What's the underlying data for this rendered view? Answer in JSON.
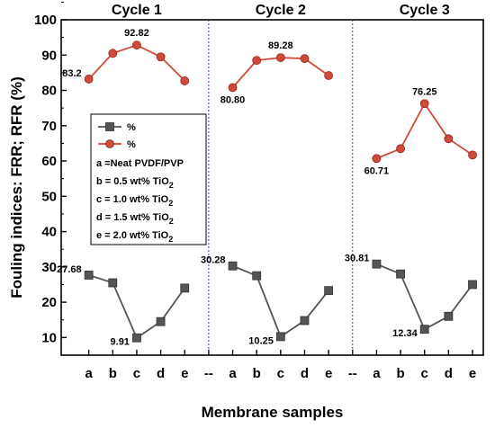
{
  "chart_data": {
    "type": "line",
    "xlabel": "Membrane samples",
    "ylabel": "Fouling indices: FRR; RFR (%)",
    "ylim": [
      5,
      100
    ],
    "yticks": [
      10,
      20,
      30,
      40,
      50,
      60,
      70,
      80,
      90,
      100
    ],
    "categories": [
      "a",
      "b",
      "c",
      "d",
      "e",
      "--",
      "a",
      "b",
      "c",
      "d",
      "e",
      "--",
      "a",
      "b",
      "c",
      "d",
      "e"
    ],
    "cycles": [
      {
        "title": "Cycle 1",
        "series": [
          {
            "name": "%",
            "color": "#d04a3a",
            "marker": "circle",
            "values": [
              83.2,
              90.5,
              92.82,
              89.5,
              82.7
            ]
          },
          {
            "name": "%",
            "color": "#555555",
            "marker": "square",
            "values": [
              27.68,
              25.5,
              9.91,
              14.5,
              24.0
            ]
          }
        ],
        "data_labels": [
          {
            "series": 0,
            "index": 0,
            "text": "83.2"
          },
          {
            "series": 0,
            "index": 2,
            "text": "92.82"
          },
          {
            "series": 1,
            "index": 0,
            "text": "27.68"
          },
          {
            "series": 1,
            "index": 2,
            "text": "9.91"
          }
        ]
      },
      {
        "title": "Cycle 2",
        "series": [
          {
            "name": "%",
            "color": "#d04a3a",
            "marker": "circle",
            "values": [
              80.8,
              88.5,
              89.28,
              89.0,
              84.2
            ]
          },
          {
            "name": "%",
            "color": "#555555",
            "marker": "square",
            "values": [
              30.28,
              27.5,
              10.25,
              14.8,
              23.3
            ]
          }
        ],
        "data_labels": [
          {
            "series": 0,
            "index": 0,
            "text": "80.80"
          },
          {
            "series": 0,
            "index": 2,
            "text": "89.28"
          },
          {
            "series": 1,
            "index": 0,
            "text": "30.28"
          },
          {
            "series": 1,
            "index": 2,
            "text": "10.25"
          }
        ]
      },
      {
        "title": "Cycle 3",
        "series": [
          {
            "name": "%",
            "color": "#d04a3a",
            "marker": "circle",
            "values": [
              60.71,
              63.5,
              76.25,
              66.3,
              61.7
            ]
          },
          {
            "name": "%",
            "color": "#555555",
            "marker": "square",
            "values": [
              30.81,
              28.0,
              12.34,
              16.0,
              25.0
            ]
          }
        ],
        "data_labels": [
          {
            "series": 0,
            "index": 0,
            "text": "60.71"
          },
          {
            "series": 0,
            "index": 2,
            "text": "76.25"
          },
          {
            "series": 1,
            "index": 0,
            "text": "30.81"
          },
          {
            "series": 1,
            "index": 2,
            "text": "12.34"
          }
        ]
      }
    ],
    "legend": {
      "placement": "left",
      "series_entries": [
        {
          "text": "%",
          "marker": "square",
          "color": "#555555"
        },
        {
          "text": "%",
          "marker": "circle",
          "color": "#d04a3a"
        }
      ],
      "notes": [
        {
          "text": "a =Neat PVDF/PVP",
          "sub": ""
        },
        {
          "text": "b = 0.5 wt%  TiO",
          "sub": "2"
        },
        {
          "text": "c = 1.0 wt%  TiO",
          "sub": "2"
        },
        {
          "text": "d = 1.5 wt%  TiO",
          "sub": "2"
        },
        {
          "text": "e = 2.0 wt%  TiO",
          "sub": "2"
        }
      ]
    },
    "separator_color": "#2b3fb8",
    "grid": false
  }
}
